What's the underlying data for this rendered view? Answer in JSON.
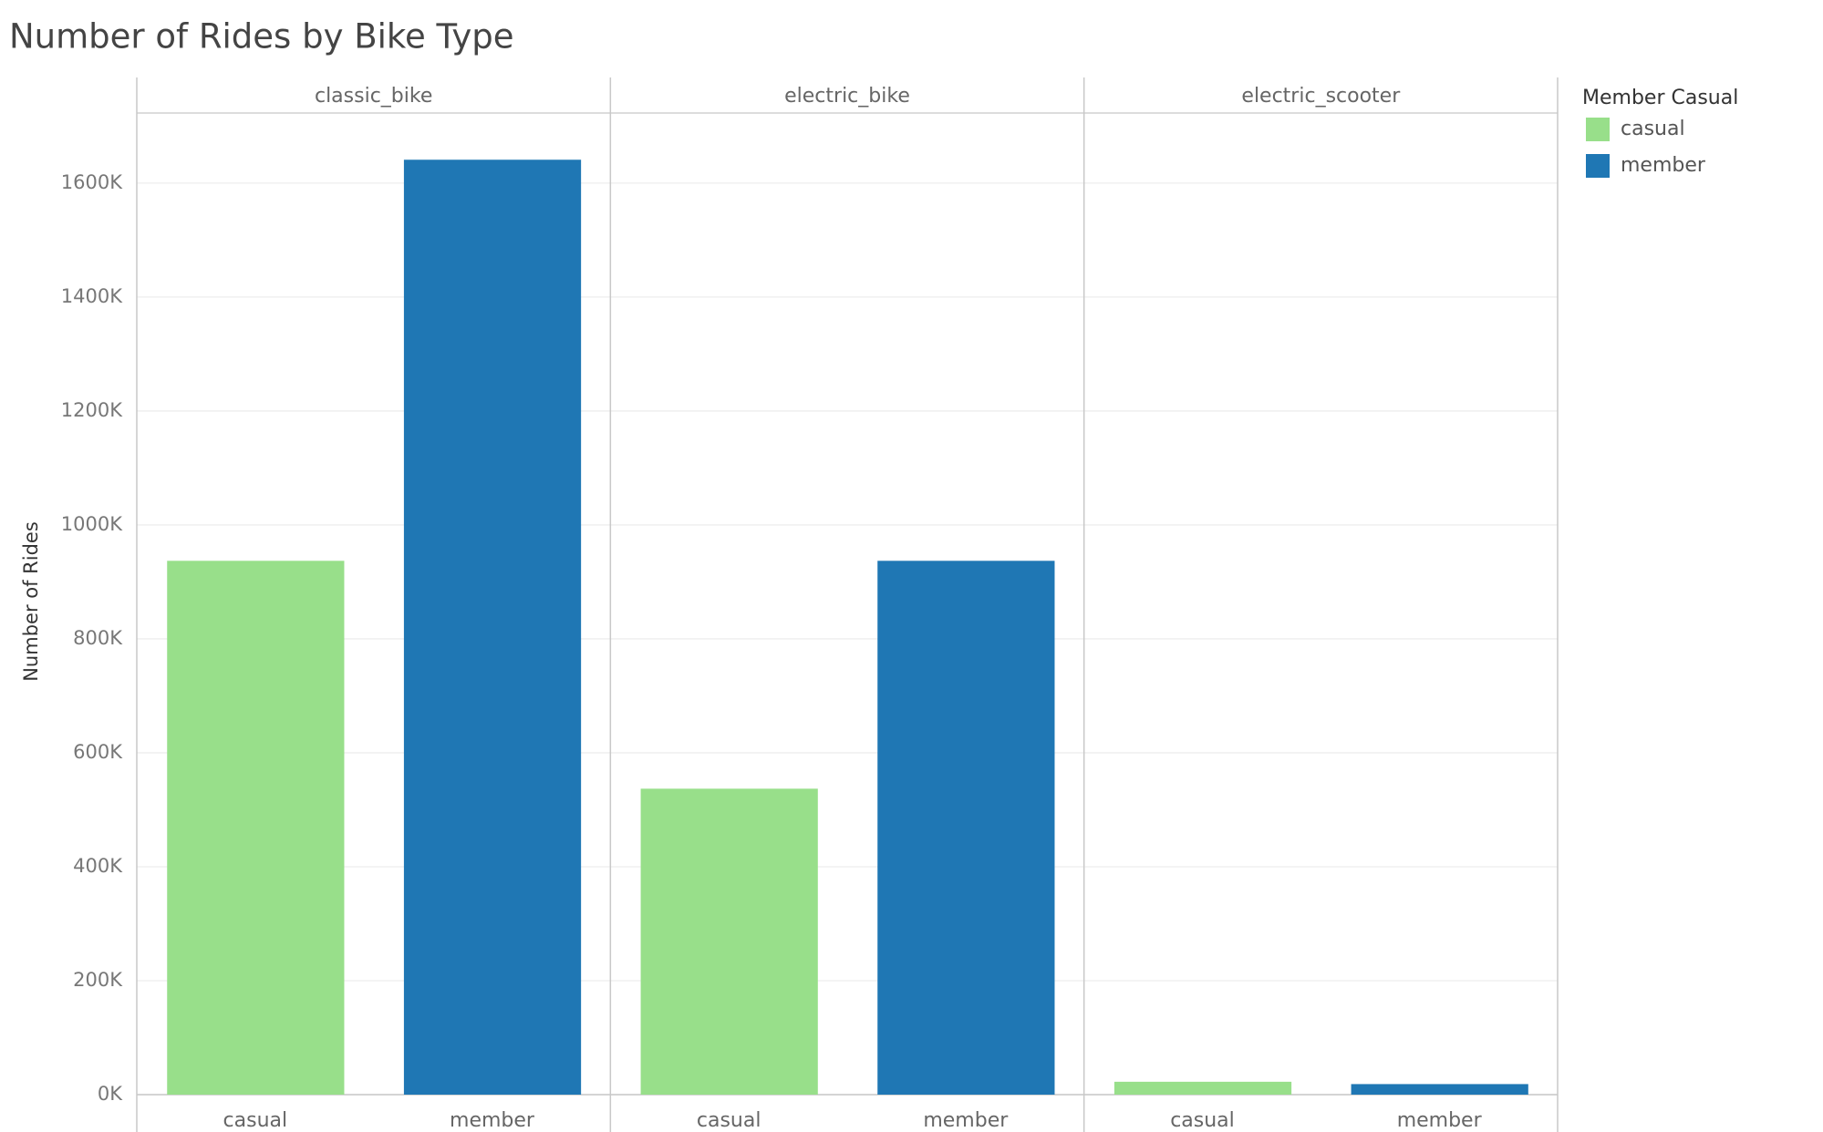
{
  "chart_data": {
    "type": "bar",
    "title": "Number of Rides by Bike Type",
    "y_label": "Number of Rides",
    "categories": [
      "classic_bike",
      "electric_bike",
      "electric_scooter"
    ],
    "legend_title": "Member Casual",
    "legend": "right",
    "grid": true,
    "series": [
      {
        "name": "casual",
        "color": "#98df8a",
        "values": [
          937000,
          537000,
          22600
        ]
      },
      {
        "name": "member",
        "color": "#1f77b4",
        "values": [
          1641000,
          937000,
          18500
        ]
      }
    ],
    "ylim": [
      0,
      1723000
    ],
    "yticks": [
      {
        "value": 0,
        "label": "0K"
      },
      {
        "value": 200000,
        "label": "200K"
      },
      {
        "value": 400000,
        "label": "400K"
      },
      {
        "value": 600000,
        "label": "600K"
      },
      {
        "value": 800000,
        "label": "800K"
      },
      {
        "value": 1000000,
        "label": "1000K"
      },
      {
        "value": 1200000,
        "label": "1200K"
      },
      {
        "value": 1400000,
        "label": "1400K"
      },
      {
        "value": 1600000,
        "label": "1600K"
      }
    ]
  }
}
